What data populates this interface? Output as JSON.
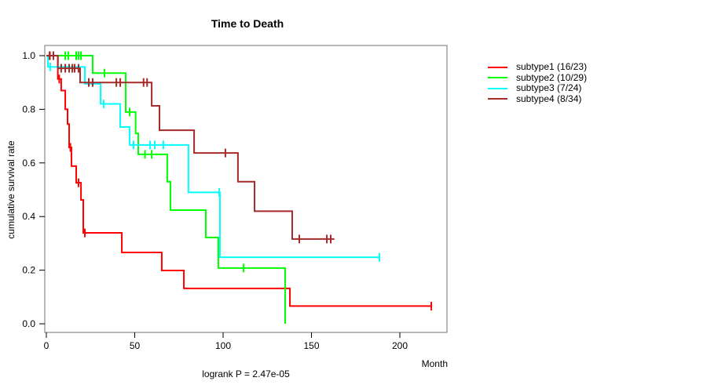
{
  "title": "Time to Death",
  "x_axis_label": "Month",
  "y_axis_label": "cumulative survival rate",
  "footnote": "logrank P = 2.47e-05",
  "chart_data": {
    "type": "line",
    "variant": "kaplan-meier-step",
    "title": "Time to Death",
    "xlabel": "Month",
    "ylabel": "cumulative survival rate",
    "annotation": "logrank P = 2.47e-05",
    "xlim": [
      0,
      228
    ],
    "ylim": [
      0.0,
      1.0
    ],
    "xticks": [
      0,
      50,
      100,
      150,
      200
    ],
    "yticks": [
      0.0,
      0.2,
      0.4,
      0.6,
      0.8,
      1.0
    ],
    "grid": false,
    "legend_position": "right-outside",
    "axis_color": "#737373",
    "series": [
      {
        "name": "subtype1",
        "label": "subtype1 (16/23)",
        "color": "#ff0000",
        "start": [
          0,
          1.0
        ],
        "steps": [
          [
            6.5,
            0.913
          ],
          [
            8.4,
            0.87
          ],
          [
            10.7,
            0.8
          ],
          [
            12.0,
            0.745
          ],
          [
            12.9,
            0.658
          ],
          [
            14.2,
            0.588
          ],
          [
            16.9,
            0.526
          ],
          [
            19.6,
            0.462
          ],
          [
            20.9,
            0.339
          ],
          [
            42.7,
            0.266
          ],
          [
            65.3,
            0.199
          ],
          [
            77.8,
            0.132
          ],
          [
            137.8,
            0.066
          ]
        ],
        "end_time": 217.8,
        "censors": [
          [
            2,
            1.0
          ],
          [
            4,
            1.0
          ],
          [
            7.3,
            0.913
          ],
          [
            13.6,
            0.658
          ],
          [
            18.2,
            0.526
          ],
          [
            21.8,
            0.339
          ],
          [
            217.8,
            0.066
          ]
        ]
      },
      {
        "name": "subtype2",
        "label": "subtype2 (10/29)",
        "color": "#00ff00",
        "start": [
          0,
          1.0
        ],
        "steps": [
          [
            26.2,
            0.935
          ],
          [
            44.9,
            0.79
          ],
          [
            50.5,
            0.71
          ],
          [
            52.0,
            0.632
          ],
          [
            68.4,
            0.53
          ],
          [
            70.2,
            0.424
          ],
          [
            90.2,
            0.322
          ],
          [
            97.3,
            0.208
          ],
          [
            135.1,
            0.0
          ]
        ],
        "end_time": 135.1,
        "censors": [
          [
            10.7,
            1.0
          ],
          [
            12.4,
            1.0
          ],
          [
            16.9,
            1.0
          ],
          [
            18.2,
            1.0
          ],
          [
            19.6,
            1.0
          ],
          [
            32.9,
            0.935
          ],
          [
            47.1,
            0.79
          ],
          [
            55.8,
            0.632
          ],
          [
            59.6,
            0.632
          ],
          [
            111.6,
            0.208
          ]
        ]
      },
      {
        "name": "subtype3",
        "label": "subtype3 (7/24)",
        "color": "#00ffff",
        "start": [
          0,
          1.0
        ],
        "steps": [
          [
            0.9,
            0.958
          ],
          [
            21.8,
            0.895
          ],
          [
            30.7,
            0.82
          ],
          [
            41.8,
            0.734
          ],
          [
            47.1,
            0.667
          ],
          [
            80.4,
            0.49
          ],
          [
            98.2,
            0.248
          ]
        ],
        "end_time": 188.4,
        "censors": [
          [
            2.2,
            0.958
          ],
          [
            32.4,
            0.82
          ],
          [
            49.3,
            0.667
          ],
          [
            58.7,
            0.667
          ],
          [
            61.3,
            0.667
          ],
          [
            66.2,
            0.667
          ],
          [
            97.8,
            0.49
          ],
          [
            188.4,
            0.248
          ]
        ]
      },
      {
        "name": "subtype4",
        "label": "subtype4 (8/34)",
        "color": "#a52a2a",
        "start": [
          0,
          1.0
        ],
        "steps": [
          [
            6.5,
            0.953
          ],
          [
            19.1,
            0.9
          ],
          [
            59.6,
            0.813
          ],
          [
            64.0,
            0.722
          ],
          [
            83.6,
            0.637
          ],
          [
            108.4,
            0.53
          ],
          [
            117.8,
            0.42
          ],
          [
            139.1,
            0.316
          ]
        ],
        "end_time": 163.0,
        "censors": [
          [
            1.8,
            1.0
          ],
          [
            4.0,
            1.0
          ],
          [
            8.4,
            0.953
          ],
          [
            10.7,
            0.953
          ],
          [
            12.9,
            0.953
          ],
          [
            14.7,
            0.953
          ],
          [
            16.0,
            0.953
          ],
          [
            18.2,
            0.953
          ],
          [
            24.0,
            0.9
          ],
          [
            26.2,
            0.9
          ],
          [
            39.6,
            0.9
          ],
          [
            41.8,
            0.9
          ],
          [
            55.0,
            0.9
          ],
          [
            57.0,
            0.9
          ],
          [
            101.3,
            0.637
          ],
          [
            143.1,
            0.316
          ],
          [
            158.7,
            0.316
          ],
          [
            160.9,
            0.316
          ]
        ]
      }
    ]
  }
}
